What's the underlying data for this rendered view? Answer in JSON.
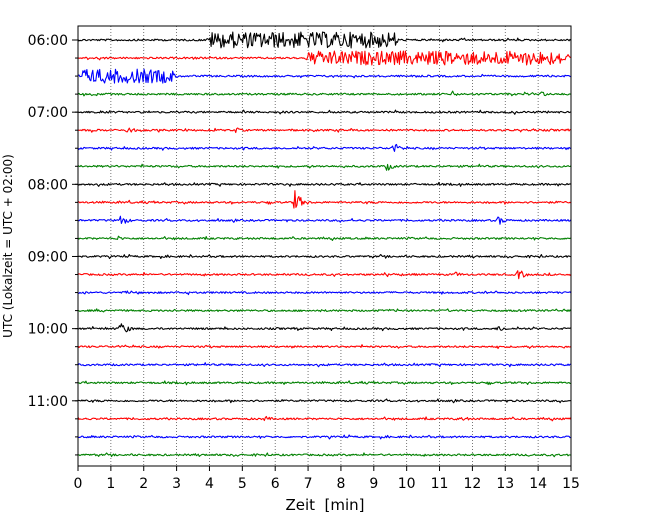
{
  "chart_data": {
    "type": "line",
    "title": "",
    "xlabel": "Zeit  [min]",
    "ylabel": "UTC (Lokalzeit = UTC + 02:00)",
    "xlim": [
      0,
      15
    ],
    "x_ticks": [
      0,
      1,
      2,
      3,
      4,
      5,
      6,
      7,
      8,
      9,
      10,
      11,
      12,
      13,
      14,
      15
    ],
    "grid": "vertical-dotted",
    "trace_interval_minutes": 15,
    "colors": [
      "#000000",
      "#ff0000",
      "#0000ff",
      "#008000"
    ],
    "y_ticks": [
      "06:00",
      "07:00",
      "08:00",
      "09:00",
      "10:00",
      "11:00"
    ],
    "traces": [
      {
        "start": "06:00",
        "color": "#000000",
        "events": [
          {
            "t": 3.9,
            "end": 9.8,
            "amp": 8
          }
        ]
      },
      {
        "start": "06:15",
        "color": "#ff0000",
        "events": [
          {
            "t": 6.9,
            "end": 15,
            "amp": 7
          }
        ]
      },
      {
        "start": "06:30",
        "color": "#0000ff",
        "events": [
          {
            "t": 0,
            "end": 3.0,
            "amp": 7
          }
        ]
      },
      {
        "start": "06:45",
        "color": "#008000",
        "events": [
          {
            "t": 11.4,
            "amp": 3
          },
          {
            "t": 14.1,
            "amp": 3
          }
        ]
      },
      {
        "start": "07:00",
        "color": "#000000",
        "events": []
      },
      {
        "start": "07:15",
        "color": "#ff0000",
        "events": [
          {
            "t": 1.5,
            "amp": 4
          },
          {
            "t": 4.8,
            "amp": 3
          }
        ]
      },
      {
        "start": "07:30",
        "color": "#0000ff",
        "events": [
          {
            "t": 9.6,
            "amp": 6
          }
        ]
      },
      {
        "start": "07:45",
        "color": "#008000",
        "events": [
          {
            "t": 9.4,
            "amp": 5
          }
        ]
      },
      {
        "start": "08:00",
        "color": "#000000",
        "events": []
      },
      {
        "start": "08:15",
        "color": "#ff0000",
        "events": [
          {
            "t": 6.6,
            "amp": 12
          }
        ]
      },
      {
        "start": "08:30",
        "color": "#0000ff",
        "events": [
          {
            "t": 1.3,
            "amp": 6
          },
          {
            "t": 12.8,
            "amp": 5
          }
        ]
      },
      {
        "start": "08:45",
        "color": "#008000",
        "events": [
          {
            "t": 1.2,
            "amp": 3
          }
        ]
      },
      {
        "start": "09:00",
        "color": "#000000",
        "events": []
      },
      {
        "start": "09:15",
        "color": "#ff0000",
        "events": [
          {
            "t": 11.5,
            "amp": 3
          },
          {
            "t": 13.4,
            "amp": 6
          }
        ]
      },
      {
        "start": "09:30",
        "color": "#0000ff",
        "events": []
      },
      {
        "start": "09:45",
        "color": "#008000",
        "events": []
      },
      {
        "start": "10:00",
        "color": "#000000",
        "events": [
          {
            "t": 1.3,
            "amp": 8
          },
          {
            "t": 12.8,
            "amp": 4
          }
        ]
      },
      {
        "start": "10:15",
        "color": "#ff0000",
        "events": []
      },
      {
        "start": "10:30",
        "color": "#0000ff",
        "events": []
      },
      {
        "start": "10:45",
        "color": "#008000",
        "events": []
      },
      {
        "start": "11:00",
        "color": "#000000",
        "events": []
      },
      {
        "start": "11:15",
        "color": "#ff0000",
        "events": [
          {
            "t": 5.7,
            "amp": 3
          },
          {
            "t": 11.7,
            "amp": 3
          }
        ]
      },
      {
        "start": "11:30",
        "color": "#0000ff",
        "events": []
      },
      {
        "start": "11:45",
        "color": "#008000",
        "events": []
      }
    ]
  }
}
